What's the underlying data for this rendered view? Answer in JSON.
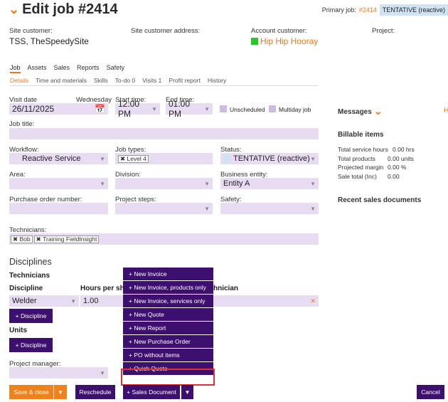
{
  "header": {
    "title": "Edit job #2414",
    "primary_label": "Primary job:",
    "primary_num": "#2414",
    "primary_tag": "TENTATIVE (reactive)"
  },
  "info": {
    "site_customer_label": "Site customer:",
    "site_customer_value": "TSS, TheSpeedySite",
    "site_address_label": "Site customer address:",
    "account_customer_label": "Account customer:",
    "account_customer_value": "Hip Hip Hooray",
    "project_label": "Project:"
  },
  "tabs_main": [
    "Job",
    "Assets",
    "Sales",
    "Reports",
    "Safety"
  ],
  "tabs_sub": [
    "Details",
    "Time and materials",
    "Skills",
    "To-do 0",
    "Visits 1",
    "Profit report",
    "History"
  ],
  "form": {
    "visit_date_label": "Visit date",
    "visit_day": "Wednesday",
    "visit_date": "26/11/2025",
    "start_label": "Start time:",
    "start_value": "12:00 PM",
    "end_label": "End time:",
    "end_value": "01:00 PM",
    "unscheduled": "Unscheduled",
    "multiday": "Multiday job",
    "job_title_label": "Job title:",
    "workflow_label": "Workflow:",
    "workflow_value": "Reactive Service",
    "job_types_label": "Job types:",
    "job_type_chip": "Level 4",
    "status_label": "Status:",
    "status_value": "TENTATIVE (reactive)",
    "area_label": "Area:",
    "division_label": "Division:",
    "business_label": "Business entity:",
    "business_value": "Entity A",
    "po_label": "Purchase order number:",
    "steps_label": "Project steps:",
    "safety_label": "Safety:",
    "technicians_label": "Technicians:",
    "tech_chips": [
      "Bob",
      "Training FieldInsight"
    ]
  },
  "disciplines": {
    "heading": "Disciplines",
    "technicians": "Technicians",
    "col_discipline": "Discipline",
    "col_hours": "Hours per shi",
    "col_tech": "hnician",
    "row_discipline": "Welder",
    "row_hours": "1.00",
    "add_label": "+ Discipline",
    "units": "Units",
    "units_add_label": "+ Discipline",
    "pm_label": "Project manager:"
  },
  "right_panel": {
    "messages": "Messages",
    "billable": "Billable items",
    "rows": [
      {
        "label": "Total service hours",
        "value": "0.00 hrs"
      },
      {
        "label": "Total products",
        "value": "0.00 units"
      },
      {
        "label": "Projected margin",
        "value": "0.00 %"
      },
      {
        "label": "Sale total (Inc)",
        "value": "0.00"
      }
    ],
    "recent_docs": "Recent sales documents"
  },
  "sales_menu": [
    "+ New Invoice",
    "+ New Invoice, products only",
    "+ New Invoice, services only",
    "+ New Quote",
    "+ New Report",
    "+ New Purchase Order",
    "+ PO without items",
    "+ Quick Quote"
  ],
  "footer": {
    "save_close": "Save & close",
    "reschedule": "Reschedule",
    "sales_document": "+ Sales Document",
    "cancel": "Cancel"
  },
  "colors": {
    "accent": "#f07a18",
    "purple": "#3d0f6e",
    "field": "#e8dcf2",
    "highlight": "#e03030"
  }
}
